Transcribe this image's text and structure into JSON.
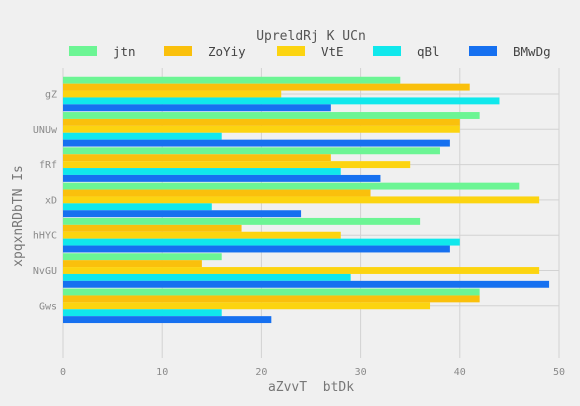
{
  "chart_data": {
    "type": "bar",
    "orientation": "horizontal",
    "title": "UpreldRj K UCn",
    "xlabel": "aZvvT  btDk",
    "ylabel": "xpqxnRDbTN Is",
    "xlim": [
      0,
      50
    ],
    "xticks": [
      "0",
      "10",
      "20",
      "30",
      "40",
      "50"
    ],
    "grid": true,
    "legend_position": "top",
    "categories": [
      "gZ",
      "UNUw",
      "fRf",
      "xD",
      "hHYC",
      "NvGU",
      "Gws"
    ],
    "series": [
      {
        "name": "jtn",
        "color": "#6cf594",
        "values": [
          34,
          42,
          38,
          46,
          36,
          16,
          42
        ]
      },
      {
        "name": "ZoYiy",
        "color": "#fac00c",
        "values": [
          41,
          40,
          27,
          31,
          18,
          14,
          42
        ]
      },
      {
        "name": "VtE",
        "color": "#fcd410",
        "values": [
          22,
          40,
          35,
          48,
          28,
          48,
          37
        ]
      },
      {
        "name": "qBl",
        "color": "#10e8ec",
        "values": [
          44,
          16,
          28,
          15,
          40,
          29,
          16
        ]
      },
      {
        "name": "BMwDg",
        "color": "#1670f0",
        "values": [
          27,
          39,
          32,
          24,
          39,
          49,
          21
        ]
      }
    ]
  }
}
